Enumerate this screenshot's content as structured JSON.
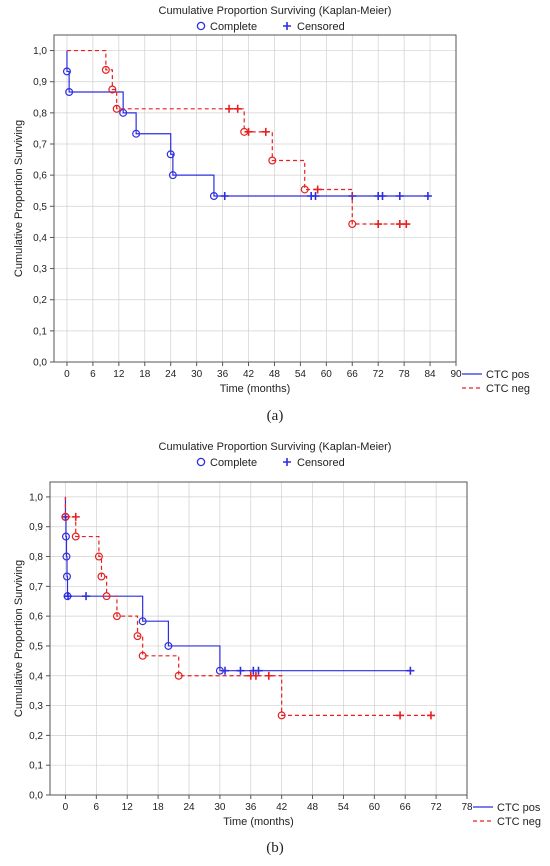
{
  "legend_top": {
    "complete": "Complete",
    "censored": "Censored"
  },
  "colors": {
    "pos": "#2e2ee0",
    "neg": "#e82020",
    "grid": "#d0d0d0"
  },
  "series_labels": {
    "pos": "CTC pos",
    "neg": "CTC neg"
  },
  "chart_data": [
    {
      "id": "a",
      "caption": "(a)",
      "type": "line",
      "step": true,
      "title": "Cumulative Proportion Surviving (Kaplan-Meier)",
      "xlabel": "Time (months)",
      "ylabel": "Cumulative Proportion Surviving",
      "xlim": [
        -3,
        90
      ],
      "ylim": [
        0,
        1.05
      ],
      "xticks": [
        0,
        6,
        12,
        18,
        24,
        30,
        36,
        42,
        48,
        54,
        60,
        66,
        72,
        78,
        84,
        90
      ],
      "xtick_labels": [
        "0",
        "6",
        "12",
        "18",
        "24",
        "30",
        "36",
        "42",
        "48",
        "54",
        "60",
        "66",
        "72",
        "78",
        "84",
        "90"
      ],
      "yticks": [
        0,
        0.1,
        0.2,
        0.3,
        0.4,
        0.5,
        0.6,
        0.7,
        0.8,
        0.9,
        1.0
      ],
      "ytick_labels": [
        "0,0",
        "0,1",
        "0,2",
        "0,3",
        "0,4",
        "0,5",
        "0,6",
        "0,7",
        "0,8",
        "0,9",
        "1,0"
      ],
      "series": [
        {
          "name": "CTC pos",
          "key": "pos",
          "style": "solid",
          "steps": [
            [
              0,
              1.0
            ],
            [
              0,
              0.933
            ],
            [
              0.5,
              0.867
            ],
            [
              13,
              0.8
            ],
            [
              16,
              0.733
            ],
            [
              24,
              0.667
            ],
            [
              24.5,
              0.6
            ],
            [
              34,
              0.533
            ],
            [
              84,
              0.533
            ]
          ],
          "events": [
            [
              0,
              0.933
            ],
            [
              0.5,
              0.867
            ],
            [
              13,
              0.8
            ],
            [
              16,
              0.733
            ],
            [
              24,
              0.667
            ],
            [
              24.5,
              0.6
            ],
            [
              34,
              0.533
            ]
          ],
          "censored": [
            [
              36.5,
              0.533
            ],
            [
              56.5,
              0.533
            ],
            [
              57.5,
              0.533
            ],
            [
              66,
              0.533
            ],
            [
              72,
              0.533
            ],
            [
              73,
              0.533
            ],
            [
              77,
              0.533
            ],
            [
              83.5,
              0.533
            ]
          ]
        },
        {
          "name": "CTC neg",
          "key": "neg",
          "style": "dashed",
          "steps": [
            [
              0,
              1.0
            ],
            [
              9,
              0.938
            ],
            [
              10.5,
              0.875
            ],
            [
              11.5,
              0.813
            ],
            [
              41,
              0.739
            ],
            [
              47.5,
              0.647
            ],
            [
              55,
              0.554
            ],
            [
              66,
              0.443
            ],
            [
              78.5,
              0.443
            ]
          ],
          "events": [
            [
              9,
              0.938
            ],
            [
              10.5,
              0.875
            ],
            [
              11.5,
              0.813
            ],
            [
              41,
              0.739
            ],
            [
              47.5,
              0.647
            ],
            [
              55,
              0.554
            ],
            [
              66,
              0.443
            ]
          ],
          "censored": [
            [
              37.5,
              0.813
            ],
            [
              39.5,
              0.813
            ],
            [
              42,
              0.739
            ],
            [
              46,
              0.739
            ],
            [
              58,
              0.554
            ],
            [
              72,
              0.443
            ],
            [
              77,
              0.443
            ],
            [
              78.5,
              0.443
            ]
          ]
        }
      ]
    },
    {
      "id": "b",
      "caption": "(b)",
      "type": "line",
      "step": true,
      "title": "Cumulative Proportion Surviving (Kaplan-Meier)",
      "xlabel": "Time (months)",
      "ylabel": "Cumulative Proportion Surviving",
      "xlim": [
        -3,
        78
      ],
      "ylim": [
        0,
        1.05
      ],
      "xticks": [
        0,
        6,
        12,
        18,
        24,
        30,
        36,
        42,
        48,
        54,
        60,
        66,
        72,
        78
      ],
      "xtick_labels": [
        "0",
        "6",
        "12",
        "18",
        "24",
        "30",
        "36",
        "42",
        "48",
        "54",
        "60",
        "66",
        "72",
        "78"
      ],
      "yticks": [
        0,
        0.1,
        0.2,
        0.3,
        0.4,
        0.5,
        0.6,
        0.7,
        0.8,
        0.9,
        1.0
      ],
      "ytick_labels": [
        "0,0",
        "0,1",
        "0,2",
        "0,3",
        "0,4",
        "0,5",
        "0,6",
        "0,7",
        "0,8",
        "0,9",
        "1,0"
      ],
      "series": [
        {
          "name": "CTC pos",
          "key": "pos",
          "style": "solid",
          "steps": [
            [
              0,
              1.0
            ],
            [
              0,
              0.933
            ],
            [
              0.1,
              0.867
            ],
            [
              0.2,
              0.8
            ],
            [
              0.3,
              0.733
            ],
            [
              0.4,
              0.667
            ],
            [
              15,
              0.583
            ],
            [
              20,
              0.5
            ],
            [
              30,
              0.417
            ],
            [
              67,
              0.417
            ]
          ],
          "events": [
            [
              0,
              0.933
            ],
            [
              0.1,
              0.867
            ],
            [
              0.2,
              0.8
            ],
            [
              0.3,
              0.733
            ],
            [
              0.4,
              0.667
            ],
            [
              15,
              0.583
            ],
            [
              20,
              0.5
            ],
            [
              30,
              0.417
            ]
          ],
          "censored": [
            [
              0,
              0.933
            ],
            [
              0.5,
              0.667
            ],
            [
              4,
              0.667
            ],
            [
              31,
              0.417
            ],
            [
              34,
              0.417
            ],
            [
              36.5,
              0.417
            ],
            [
              37.5,
              0.417
            ],
            [
              67,
              0.417
            ]
          ]
        },
        {
          "name": "CTC neg",
          "key": "neg",
          "style": "dashed",
          "steps": [
            [
              0,
              1.0
            ],
            [
              0,
              0.933
            ],
            [
              2,
              0.867
            ],
            [
              6.5,
              0.8
            ],
            [
              7,
              0.733
            ],
            [
              8,
              0.667
            ],
            [
              10,
              0.6
            ],
            [
              14,
              0.533
            ],
            [
              15,
              0.467
            ],
            [
              22,
              0.4
            ],
            [
              42,
              0.267
            ],
            [
              71,
              0.267
            ]
          ],
          "events": [
            [
              0,
              0.933
            ],
            [
              2,
              0.867
            ],
            [
              6.5,
              0.8
            ],
            [
              7,
              0.733
            ],
            [
              8,
              0.667
            ],
            [
              10,
              0.6
            ],
            [
              14,
              0.533
            ],
            [
              15,
              0.467
            ],
            [
              22,
              0.4
            ],
            [
              42,
              0.267
            ]
          ],
          "censored": [
            [
              2,
              0.933
            ],
            [
              36,
              0.4
            ],
            [
              37,
              0.4
            ],
            [
              39.5,
              0.4
            ],
            [
              65,
              0.267
            ],
            [
              71,
              0.267
            ]
          ]
        }
      ]
    }
  ]
}
